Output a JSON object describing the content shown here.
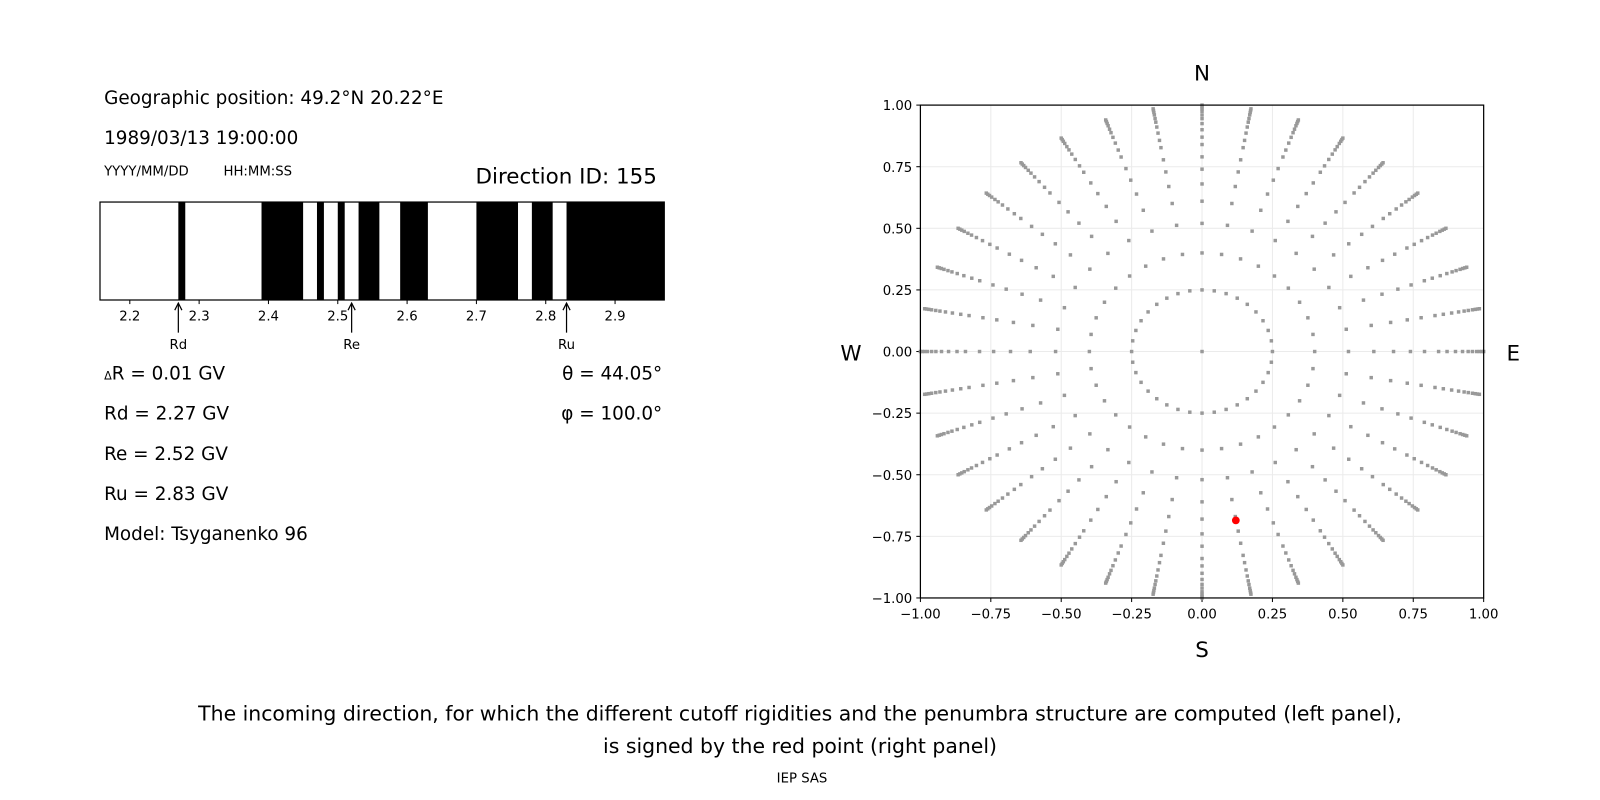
{
  "info": {
    "position": "Geographic position: 49.2°N 20.22°E",
    "datetime": "1989/03/13 19:00:00",
    "date_format": "YYYY/MM/DD",
    "time_format": "HH:MM:SS",
    "direction_id": "Direction ID: 155",
    "delta_r_symbol": "Δ",
    "delta_r": "R = 0.01 GV",
    "rd": "Rd = 2.27 GV",
    "re": "Re = 2.52 GV",
    "ru": "Ru = 2.83 GV",
    "model": "Model: Tsyganenko 96",
    "theta": "θ = 44.05°",
    "phi": "φ = 100.0°"
  },
  "caption": {
    "line1": "The incoming direction, for which the different cutoff rigidities and the penumbra structure are computed (left panel),",
    "line2": "is signed by the red point (right panel)",
    "credit": "IEP SAS"
  },
  "chart_data": [
    {
      "type": "bar",
      "subtype": "penumbra-structure",
      "xlim": [
        2.157,
        2.971
      ],
      "xticks": [
        "2.2",
        "2.3",
        "2.4",
        "2.5",
        "2.6",
        "2.7",
        "2.8",
        "2.9"
      ],
      "forbidden_bands": [
        [
          2.27,
          2.28
        ],
        [
          2.39,
          2.45
        ],
        [
          2.47,
          2.48
        ],
        [
          2.5,
          2.51
        ],
        [
          2.53,
          2.56
        ],
        [
          2.59,
          2.63
        ],
        [
          2.7,
          2.76
        ],
        [
          2.78,
          2.81
        ],
        [
          2.83,
          2.971
        ]
      ],
      "band_color": "#000000",
      "markers": [
        {
          "label": "Rd",
          "x": 2.27
        },
        {
          "label": "Re",
          "x": 2.52
        },
        {
          "label": "Ru",
          "x": 2.83
        }
      ]
    },
    {
      "type": "scatter",
      "xlim": [
        -1,
        1
      ],
      "ylim": [
        -1,
        1
      ],
      "grid": true,
      "xticks": [
        "−1.00",
        "−0.75",
        "−0.50",
        "−0.25",
        "0.00",
        "0.25",
        "0.50",
        "0.75",
        "1.00"
      ],
      "yticks": [
        "−1.00",
        "−0.75",
        "−0.50",
        "−0.25",
        "0.00",
        "0.25",
        "0.50",
        "0.75",
        "1.00"
      ],
      "compass": {
        "N": "N",
        "S": "S",
        "E": "E",
        "W": "W"
      },
      "directions": {
        "azimuth_step_deg": 10,
        "radii": [
          0.25,
          0.4,
          0.52,
          0.61,
          0.68,
          0.74,
          0.79,
          0.84,
          0.87,
          0.9,
          0.925,
          0.945,
          0.96,
          0.975,
          0.985,
          0.993,
          1.0
        ],
        "center_point": [
          0,
          0
        ],
        "color": "#999999"
      },
      "selected": {
        "x": 0.12,
        "y": -0.685,
        "color": "#ff0000"
      }
    }
  ]
}
